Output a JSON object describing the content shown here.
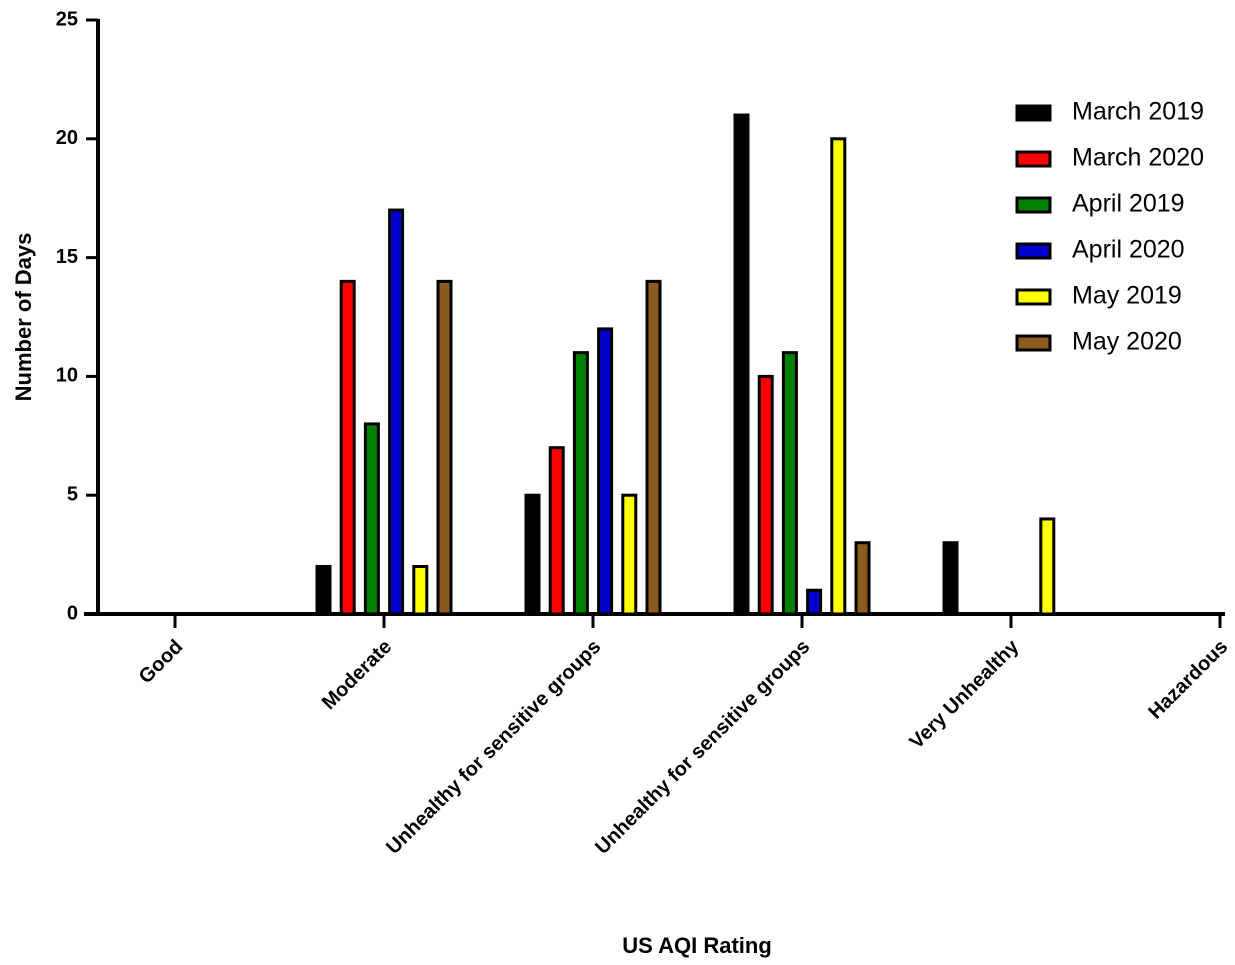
{
  "chart_data": {
    "type": "bar",
    "x_label": "US AQI Rating",
    "y_label": "Number of Days",
    "categories": [
      "Good",
      "Moderate",
      "Unhealthy for sensitive groups",
      "Unhealthy for sensitive groups",
      "Very Unhealthy",
      "Hazardous"
    ],
    "series": [
      {
        "name": "March 2019",
        "color": "#000000",
        "values": [
          0,
          2,
          5,
          21,
          3,
          0
        ]
      },
      {
        "name": "March 2020",
        "color": "#ff0000",
        "values": [
          0,
          14,
          7,
          10,
          0,
          0
        ]
      },
      {
        "name": "April 2019",
        "color": "#008000",
        "values": [
          0,
          8,
          11,
          11,
          0,
          0
        ]
      },
      {
        "name": "April 2020",
        "color": "#0000cc",
        "values": [
          0,
          17,
          12,
          1,
          0,
          0
        ]
      },
      {
        "name": "May 2019",
        "color": "#ffff00",
        "values": [
          0,
          2,
          5,
          20,
          4,
          0
        ]
      },
      {
        "name": "May 2020",
        "color": "#8b5a1e",
        "values": [
          0,
          14,
          14,
          3,
          0,
          0
        ]
      }
    ],
    "ylim": [
      0,
      25
    ],
    "yticks": [
      0,
      5,
      10,
      15,
      20,
      25
    ],
    "legend": "top-right",
    "grid": false
  }
}
